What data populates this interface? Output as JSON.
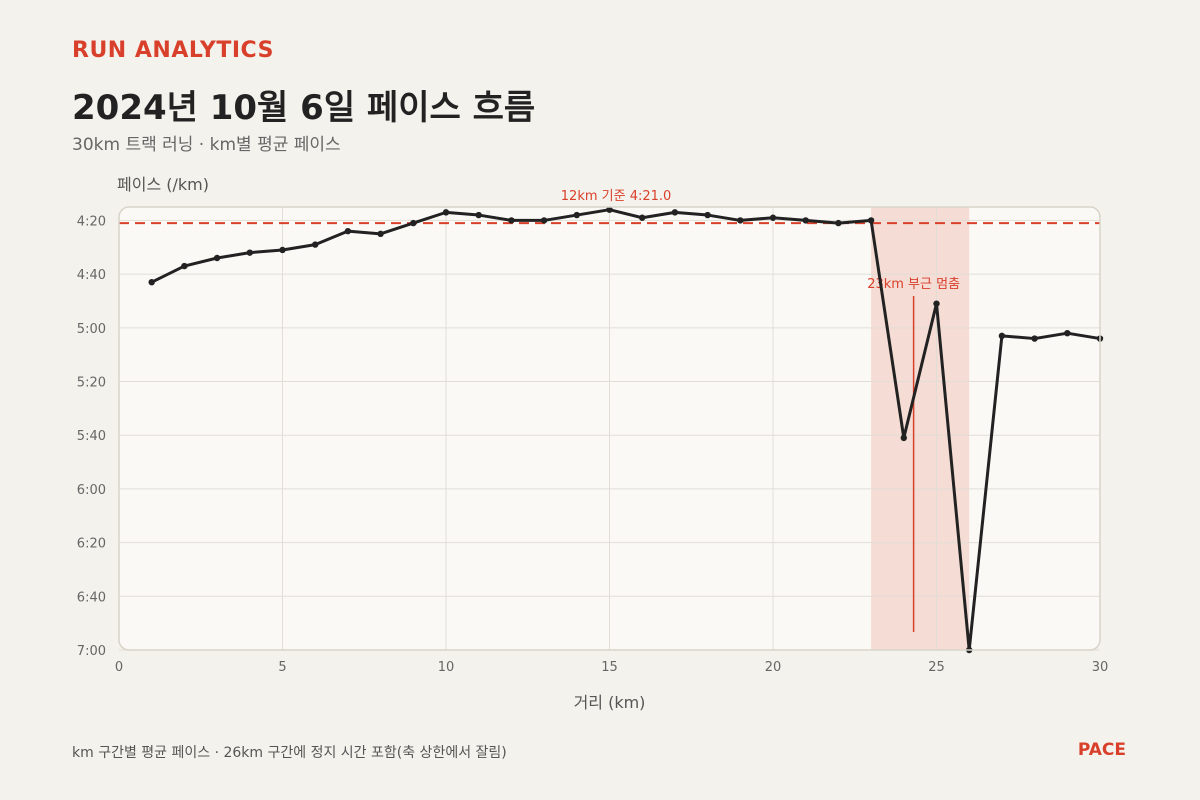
{
  "header": {
    "brand": "RUN ANALYTICS",
    "title": "2024년 10월 6일 페이스 흐름",
    "subtitle": "30km 트랙 러닝 · km별 평균 페이스"
  },
  "footer": {
    "note": "km 구간별 평균 페이스 · 26km 구간에 정지 시간 포함(축 상한에서 잘림)",
    "brand": "PACE"
  },
  "colors": {
    "line": "#222222",
    "accent": "#d9402b",
    "band": "#f3d2c8",
    "plot_bg": "#faf9f6",
    "grid": "#e1ded6"
  },
  "chart_data": {
    "type": "line",
    "xlabel": "거리 (km)",
    "ylabel": "페이스 (/km)",
    "xlim": [
      0,
      30
    ],
    "ylim_seconds": [
      255,
      420
    ],
    "y_inverted": true,
    "x_ticks": [
      0,
      5,
      10,
      15,
      20,
      25,
      30
    ],
    "y_ticks": [
      "4:20",
      "4:40",
      "5:00",
      "5:20",
      "5:40",
      "6:00",
      "6:20",
      "6:40",
      "7:00"
    ],
    "grid": true,
    "series": [
      {
        "x": [
          1,
          2,
          3,
          4,
          5,
          6,
          7,
          8,
          9,
          10,
          11,
          12,
          13,
          14,
          15,
          16,
          17,
          18,
          19,
          20,
          21,
          22,
          23,
          24,
          25,
          26,
          27,
          28,
          29,
          30
        ],
        "pace": [
          "4:43",
          "4:37",
          "4:34",
          "4:32",
          "4:31",
          "4:29",
          "4:24",
          "4:25",
          "4:21",
          "4:17",
          "4:18",
          "4:20",
          "4:20",
          "4:18",
          "4:16",
          "4:19",
          "4:17",
          "4:18",
          "4:20",
          "4:19",
          "4:20",
          "4:21",
          "4:20",
          "5:41",
          "4:51",
          "7:00",
          "5:03",
          "5:04",
          "5:02",
          "5:04"
        ]
      }
    ],
    "reference_line": {
      "pace": "4:21.0",
      "label": "12km 기준 4:21.0"
    },
    "highlight_band": {
      "x_start": 23,
      "x_end": 26
    },
    "annotation": {
      "x": 24.3,
      "label": "23km 부근 멈춤"
    }
  }
}
